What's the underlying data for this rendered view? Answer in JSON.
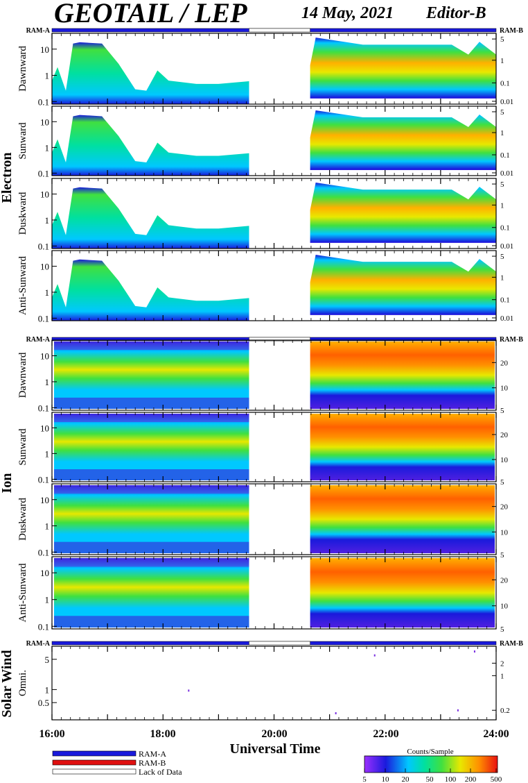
{
  "header": {
    "title": "GEOTAIL / LEP",
    "date": "14 May, 2021",
    "editor": "Editor-B"
  },
  "ram_labels": {
    "left": "RAM-A",
    "right": "RAM-B"
  },
  "groups": [
    {
      "label": "Electron",
      "panels": [
        "Dawnward",
        "Sunward",
        "Duskward",
        "Anti-Sunward"
      ]
    },
    {
      "label": "Ion",
      "panels": [
        "Dawnward",
        "Sunward",
        "Duskward",
        "Anti-Sunward"
      ]
    },
    {
      "label": "Solar Wind",
      "panels": [
        "Omni."
      ]
    }
  ],
  "axes": {
    "electron_left_ticks": [
      "10",
      "1",
      "0.1"
    ],
    "electron_right_ticks": [
      "5",
      "1",
      "0.1",
      "0.01"
    ],
    "ion_left_ticks": [
      "10",
      "1",
      "0.1"
    ],
    "ion_right_ticks": [
      "20",
      "10",
      "5"
    ],
    "sw_left_ticks": [
      "5",
      "1",
      "0.5"
    ],
    "sw_right_ticks": [
      "2",
      "1",
      "0.2"
    ],
    "time_ticks": [
      "16:00",
      "18:00",
      "20:00",
      "22:00",
      "24:00"
    ],
    "xlabel": "Universal Time"
  },
  "legend": {
    "items": [
      {
        "label": "RAM-A",
        "color": "#1a1adc"
      },
      {
        "label": "RAM-B",
        "color": "#e01010"
      },
      {
        "label": "Lack of Data",
        "color": "#ffffff"
      }
    ]
  },
  "colorbar": {
    "title": "Counts/Sample",
    "ticks": [
      "5",
      "10",
      "20",
      "50",
      "100",
      "200",
      "500"
    ]
  },
  "chart_data": {
    "type": "heatmap",
    "x_range_hours": [
      16,
      24
    ],
    "data_gap_hours": [
      19.55,
      20.65
    ],
    "electron_ylim_left": [
      0.08,
      40
    ],
    "ion_ylim_left": [
      0.08,
      40
    ],
    "solar_wind_scatter": [
      {
        "x": 18.45,
        "y": 1.0
      },
      {
        "x": 21.1,
        "y": 0.3
      },
      {
        "x": 21.8,
        "y": 6.5
      },
      {
        "x": 23.3,
        "y": 0.35
      },
      {
        "x": 23.6,
        "y": 8
      }
    ],
    "colorscale": [
      "#9b30ff",
      "#1a1adc",
      "#00c8ff",
      "#00e0a0",
      "#40e040",
      "#e8e800",
      "#ff9000",
      "#e81010"
    ]
  }
}
